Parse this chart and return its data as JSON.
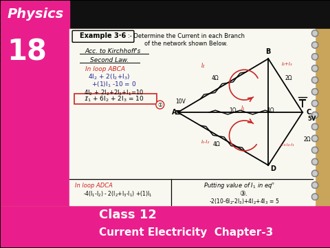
{
  "bg_color": "#000000",
  "wood_color": "#c8a55a",
  "pink_color": "#e91e8c",
  "notebook_color": "#f8f8f0",
  "physics_text": "Physics",
  "number_text": "18",
  "class_text": "Class 12",
  "bottom_text": "Current Electricity  Chapter-3"
}
